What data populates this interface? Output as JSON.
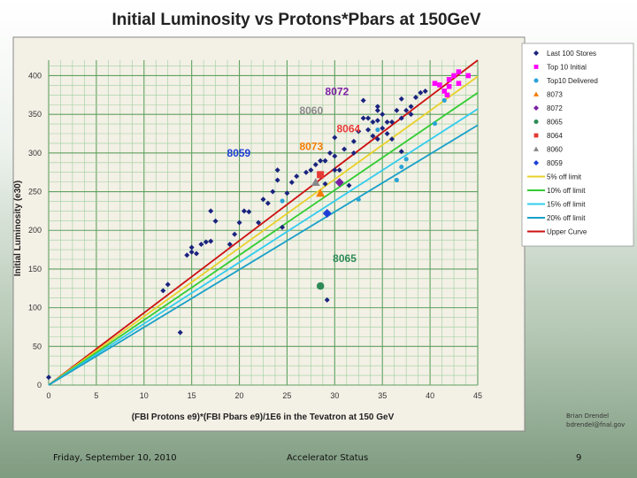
{
  "chart_data": {
    "type": "scatter",
    "title": "Initial Luminosity vs Protons*Pbars at 150GeV",
    "xlabel": "(FBI Protons e9)*(FBI Pbars e9)/1E6 in the Tevatron at 150 GeV",
    "ylabel": "Initial Luminosity (e30)",
    "xlim": [
      0,
      45
    ],
    "ylim": [
      0,
      420
    ],
    "x_ticks": [
      0,
      5,
      10,
      15,
      20,
      25,
      30,
      35,
      40,
      45
    ],
    "y_ticks": [
      0,
      50,
      100,
      150,
      200,
      250,
      300,
      350,
      400
    ],
    "grid": true,
    "legend_position": "right",
    "series": [
      {
        "name": "Last 100 Stores",
        "color": "#1a237e",
        "marker": "diamond",
        "points": [
          [
            0,
            10
          ],
          [
            12,
            122
          ],
          [
            12.5,
            130
          ],
          [
            13.8,
            68
          ],
          [
            14.5,
            168
          ],
          [
            15,
            172
          ],
          [
            15,
            178
          ],
          [
            15.5,
            170
          ],
          [
            16,
            182
          ],
          [
            16.5,
            185
          ],
          [
            17,
            225
          ],
          [
            17,
            186
          ],
          [
            17.5,
            212
          ],
          [
            19,
            182
          ],
          [
            19.5,
            195
          ],
          [
            20,
            210
          ],
          [
            20.5,
            225
          ],
          [
            21,
            224
          ],
          [
            22,
            210
          ],
          [
            22.5,
            240
          ],
          [
            23,
            235
          ],
          [
            23.5,
            250
          ],
          [
            24,
            265
          ],
          [
            24,
            278
          ],
          [
            24.5,
            204
          ],
          [
            25,
            248
          ],
          [
            25.5,
            262
          ],
          [
            26,
            270
          ],
          [
            27,
            275
          ],
          [
            27.5,
            278
          ],
          [
            28,
            285
          ],
          [
            28.5,
            290
          ],
          [
            28.5,
            270
          ],
          [
            29,
            290
          ],
          [
            29,
            260
          ],
          [
            29.2,
            110
          ],
          [
            29.5,
            300
          ],
          [
            30,
            320
          ],
          [
            30,
            296
          ],
          [
            30,
            278
          ],
          [
            30.5,
            278
          ],
          [
            31,
            305
          ],
          [
            31.5,
            258
          ],
          [
            32,
            300
          ],
          [
            32,
            315
          ],
          [
            32.5,
            328
          ],
          [
            33,
            345
          ],
          [
            33,
            368
          ],
          [
            33.5,
            345
          ],
          [
            33.5,
            330
          ],
          [
            34,
            340
          ],
          [
            34,
            322
          ],
          [
            34.5,
            360
          ],
          [
            34.5,
            355
          ],
          [
            34.5,
            342
          ],
          [
            34.5,
            318
          ],
          [
            35,
            350
          ],
          [
            35,
            332
          ],
          [
            35.5,
            340
          ],
          [
            35.5,
            325
          ],
          [
            36,
            340
          ],
          [
            36,
            318
          ],
          [
            36.5,
            355
          ],
          [
            37,
            345
          ],
          [
            37,
            370
          ],
          [
            37,
            302
          ],
          [
            37.5,
            355
          ],
          [
            38,
            360
          ],
          [
            38,
            350
          ],
          [
            38.5,
            372
          ],
          [
            39,
            378
          ],
          [
            39.5,
            380
          ]
        ]
      },
      {
        "name": "Top 10 Initial",
        "color": "#ff00ff",
        "marker": "square",
        "points": [
          [
            40.5,
            390
          ],
          [
            41,
            388
          ],
          [
            41.5,
            380
          ],
          [
            42,
            395
          ],
          [
            42,
            386
          ],
          [
            42.5,
            400
          ],
          [
            43,
            390
          ],
          [
            43,
            405
          ],
          [
            44,
            400
          ],
          [
            41.8,
            375
          ]
        ]
      },
      {
        "name": "Top10 Delivered",
        "color": "#29a3d6",
        "marker": "circle",
        "points": [
          [
            32.5,
            240
          ],
          [
            34.5,
            330
          ],
          [
            36.5,
            265
          ],
          [
            37,
            282
          ],
          [
            37.5,
            292
          ],
          [
            40.5,
            338
          ],
          [
            41.5,
            368
          ],
          [
            24.5,
            238
          ]
        ]
      },
      {
        "name": "8073",
        "color": "#f57c00",
        "marker": "triangle",
        "points": [
          [
            28.5,
            248
          ]
        ]
      },
      {
        "name": "8072",
        "color": "#7b1fa2",
        "marker": "diamond",
        "points": [
          [
            30.5,
            262
          ]
        ]
      },
      {
        "name": "8065",
        "color": "#2e8b57",
        "marker": "circle",
        "points": [
          [
            28.5,
            128
          ]
        ]
      },
      {
        "name": "8064",
        "color": "#e53935",
        "marker": "square",
        "points": [
          [
            28.5,
            272
          ]
        ]
      },
      {
        "name": "8060",
        "color": "#888888",
        "marker": "triangle",
        "points": [
          [
            28,
            262
          ]
        ]
      },
      {
        "name": "8059",
        "color": "#1e3fd6",
        "marker": "diamond",
        "points": [
          [
            29.2,
            222
          ]
        ]
      }
    ],
    "fit_lines": [
      {
        "name": "Upper Curve",
        "color": "#cc1111",
        "x": [
          0,
          45
        ],
        "y": [
          0,
          420
        ]
      },
      {
        "name": "5% off limit",
        "color": "#e8d12a",
        "x": [
          0,
          45
        ],
        "y": [
          0,
          399
        ]
      },
      {
        "name": "10% off limit",
        "color": "#33cc33",
        "x": [
          0,
          45
        ],
        "y": [
          0,
          378
        ]
      },
      {
        "name": "15% off limit",
        "color": "#33ccee",
        "x": [
          0,
          45
        ],
        "y": [
          0,
          357
        ]
      },
      {
        "name": "20% off limit",
        "color": "#1aa0c8",
        "x": [
          0,
          45
        ],
        "y": [
          0,
          336
        ]
      }
    ],
    "legend": [
      {
        "label": "Last 100 Stores",
        "color": "#1a237e",
        "marker": "diamond"
      },
      {
        "label": "Top 10 Initial",
        "color": "#ff00ff",
        "marker": "square"
      },
      {
        "label": "Top10 Delivered",
        "color": "#29a3d6",
        "marker": "circle"
      },
      {
        "label": "8073",
        "color": "#f57c00",
        "marker": "triangle"
      },
      {
        "label": "8072",
        "color": "#7b1fa2",
        "marker": "diamond"
      },
      {
        "label": "8065",
        "color": "#2e8b57",
        "marker": "circle"
      },
      {
        "label": "8064",
        "color": "#e53935",
        "marker": "square"
      },
      {
        "label": "8060",
        "color": "#888888",
        "marker": "triangle"
      },
      {
        "label": "8059",
        "color": "#1e3fd6",
        "marker": "diamond"
      },
      {
        "label": "5% off limit",
        "color": "#e8d12a",
        "marker": "line"
      },
      {
        "label": "10% off limit",
        "color": "#33cc33",
        "marker": "line"
      },
      {
        "label": "15% off limit",
        "color": "#33ccee",
        "marker": "line"
      },
      {
        "label": "20% off limit",
        "color": "#1aa0c8",
        "marker": "line"
      },
      {
        "label": "Upper Curve",
        "color": "#cc1111",
        "marker": "line"
      }
    ],
    "annotations": [
      {
        "text": "8072",
        "x": 29,
        "y": 375,
        "color": "#7b1fa2"
      },
      {
        "text": "8060",
        "x": 26.3,
        "y": 350,
        "color": "#8a8a8a"
      },
      {
        "text": "8064",
        "x": 30.2,
        "y": 327,
        "color": "#e53935"
      },
      {
        "text": "8073",
        "x": 26.3,
        "y": 304,
        "color": "#f57c00"
      },
      {
        "text": "8059",
        "x": 18.7,
        "y": 295,
        "color": "#1e3fd6"
      },
      {
        "text": "8065",
        "x": 29.8,
        "y": 159,
        "color": "#2e8b57"
      }
    ]
  },
  "footer": {
    "date": "Friday, September 10, 2010",
    "center": "Accelerator Status",
    "page": "9"
  },
  "credit": {
    "line1": "Brian Drendel",
    "line2": "bdrendel@fnal.gov"
  }
}
